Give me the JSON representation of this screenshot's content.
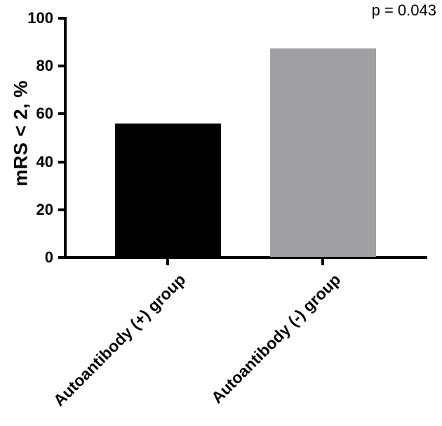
{
  "figure": {
    "background": "#ffffff",
    "axis_color": "#000000",
    "text_color": "#000000"
  },
  "chart_data": {
    "type": "bar",
    "categories": [
      "Autoantibody (+) group",
      "Autoantibody (-) group"
    ],
    "values": [
      56,
      87.5
    ],
    "bar_colors": [
      "#000000",
      "#9fa0a4"
    ],
    "title": "",
    "xlabel": "",
    "ylabel": "mRS < 2, %",
    "ylim": [
      0,
      100
    ],
    "yticks": [
      0,
      20,
      40,
      60,
      80,
      100
    ],
    "grid": false,
    "legend": "none",
    "annotation": "p = 0.043",
    "annotation_position": "top-right"
  }
}
